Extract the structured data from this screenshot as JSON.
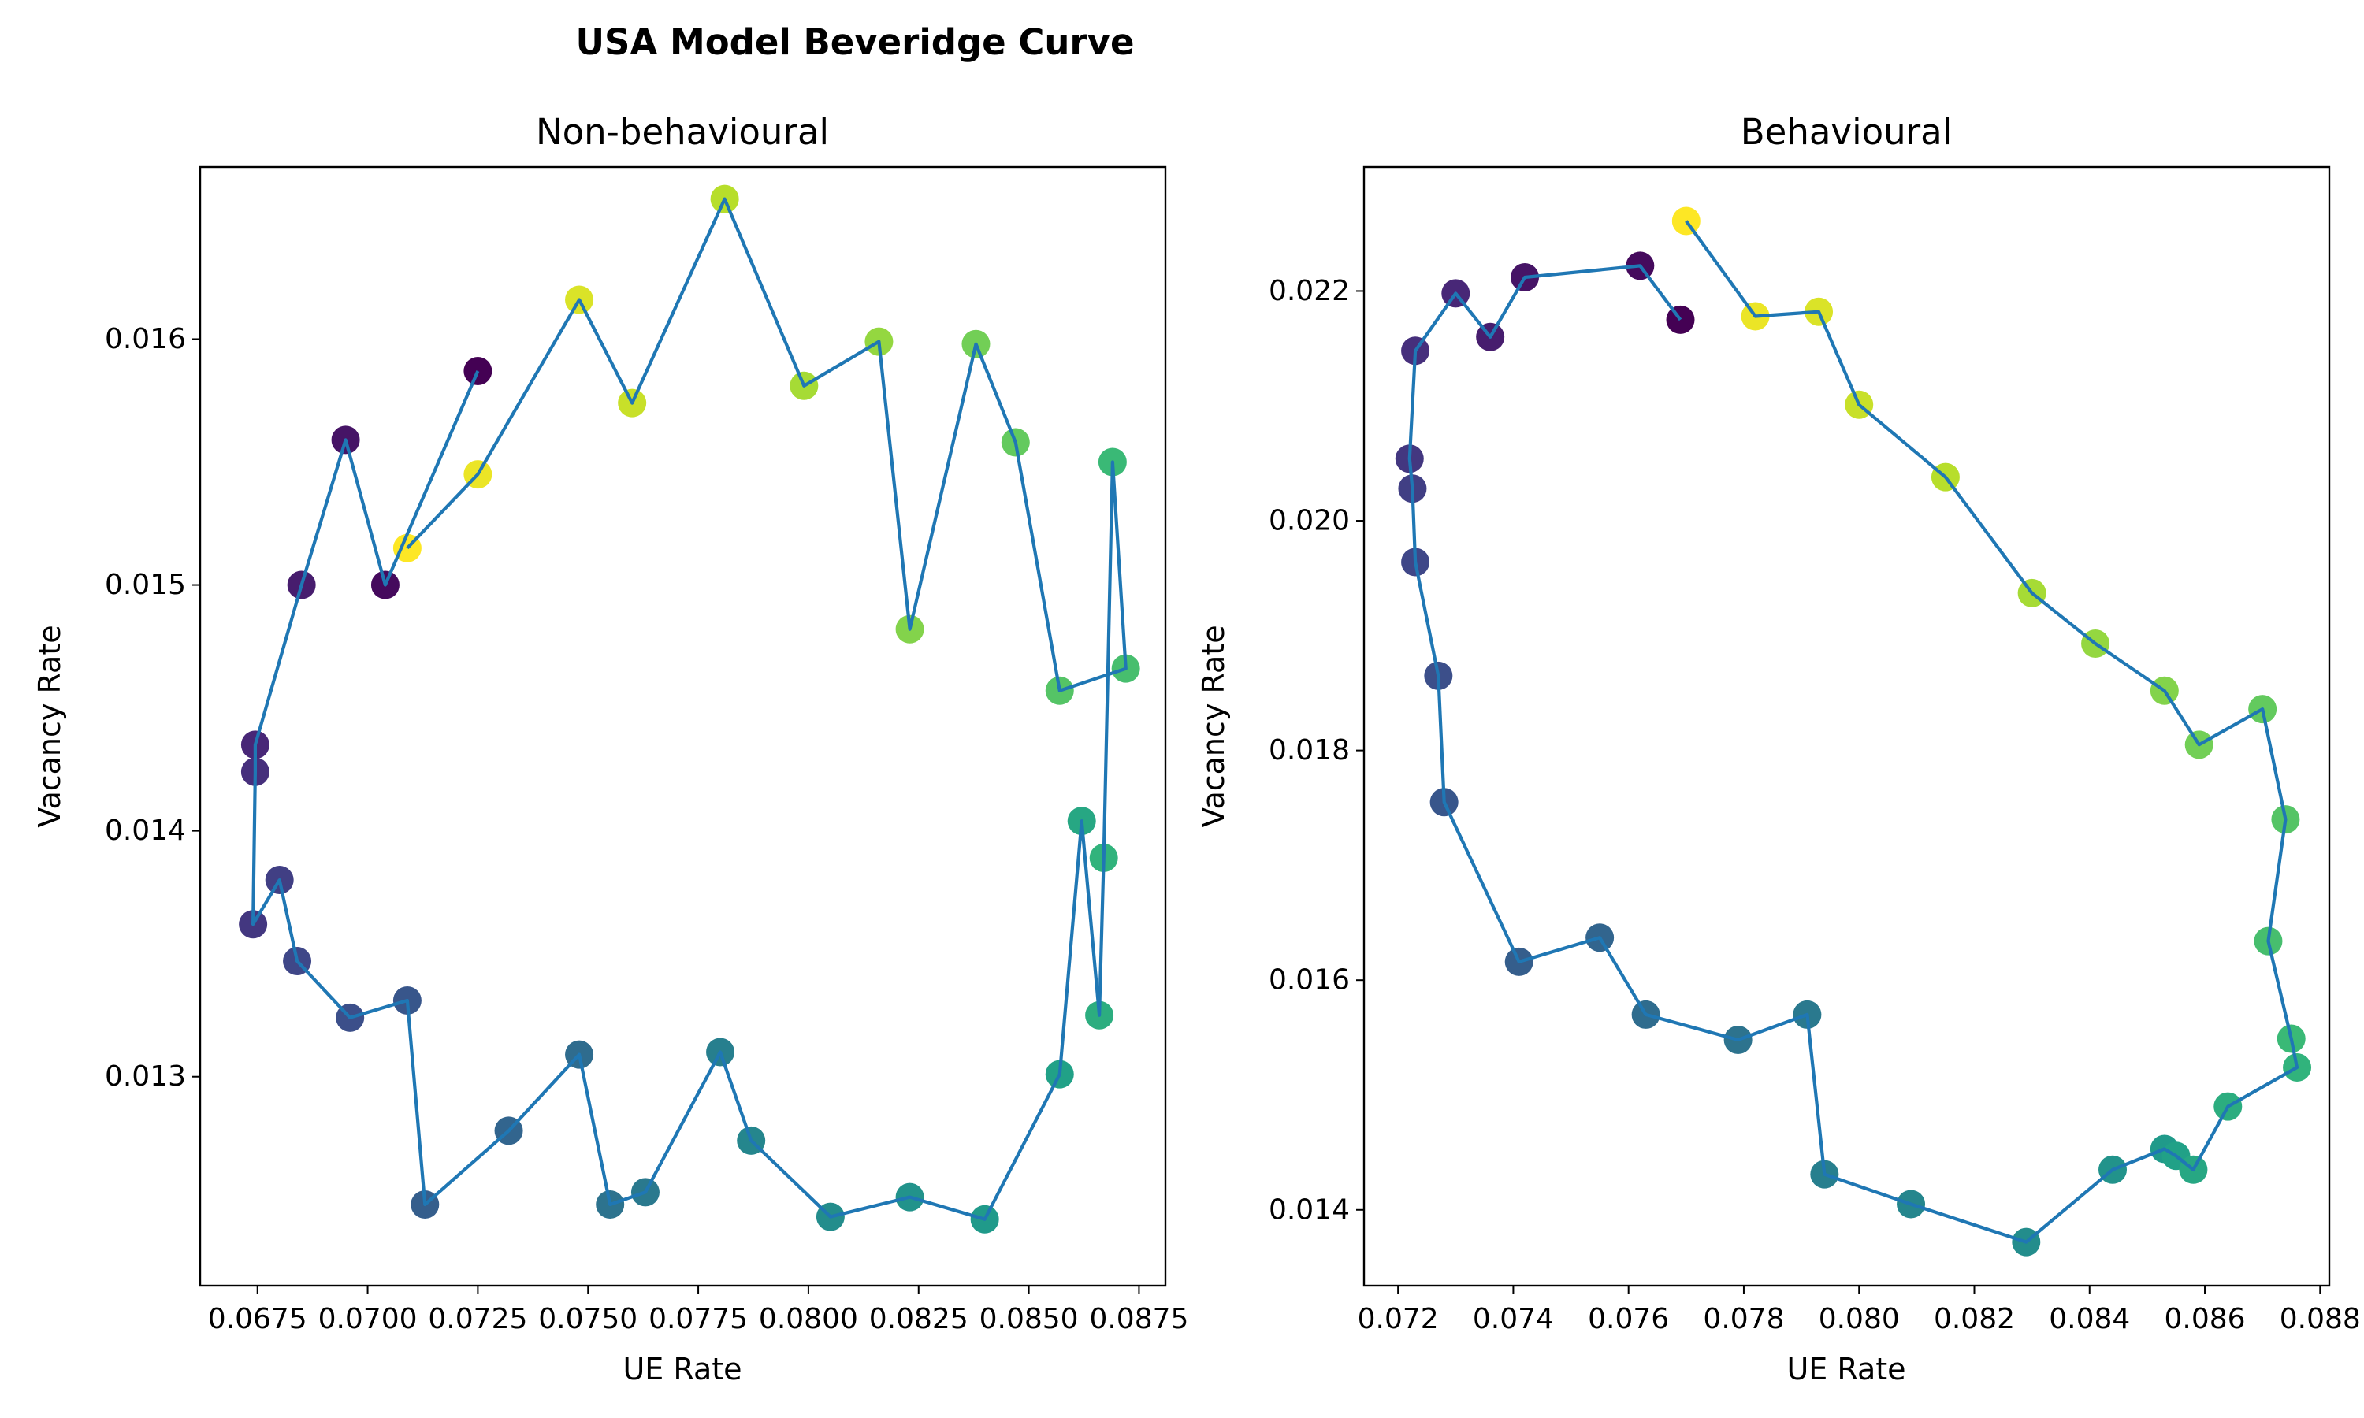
{
  "figure": {
    "suptitle": "USA Model Beveridge Curve"
  },
  "chart_data": [
    {
      "type": "scatter",
      "title": "Non-behavioural",
      "xlabel": "UE Rate",
      "ylabel": "Vacancy Rate",
      "xlim": [
        0.0662,
        0.0881
      ],
      "ylim": [
        0.01215,
        0.0167
      ],
      "xticks": [
        0.0675,
        0.07,
        0.0725,
        0.075,
        0.0775,
        0.08,
        0.0825,
        0.085,
        0.0875
      ],
      "xtick_labels": [
        "0.0675",
        "0.0700",
        "0.0725",
        "0.0750",
        "0.0775",
        "0.0800",
        "0.0825",
        "0.0850",
        "0.0875"
      ],
      "yticks": [
        0.013,
        0.014,
        0.015,
        0.016
      ],
      "ytick_labels": [
        "0.013",
        "0.014",
        "0.015",
        "0.016"
      ],
      "grid": false,
      "line_color": "#1f77b4",
      "colormap": "viridis",
      "color_order": "point index (first = dark purple, last = yellow)",
      "series": [
        {
          "x": [
            0.0725,
            0.0704,
            0.0695,
            0.0685,
            0.06745,
            0.06745,
            0.0674,
            0.068,
            0.0684,
            0.0696,
            0.0709,
            0.0713,
            0.0732,
            0.0748,
            0.0755,
            0.0763,
            0.078,
            0.0787,
            0.0805,
            0.0823,
            0.084,
            0.0857,
            0.0862,
            0.0866,
            0.0867,
            0.0869,
            0.0872,
            0.0857,
            0.0847,
            0.0838,
            0.0823,
            0.0816,
            0.0799,
            0.0781,
            0.076,
            0.0748,
            0.0725,
            0.0709
          ],
          "y": [
            0.01587,
            0.015,
            0.01559,
            0.015,
            0.01435,
            0.01424,
            0.01362,
            0.0138,
            0.01347,
            0.01324,
            0.01331,
            0.01248,
            0.01278,
            0.01309,
            0.01248,
            0.01253,
            0.0131,
            0.01274,
            0.01243,
            0.01251,
            0.01242,
            0.01301,
            0.01404,
            0.01325,
            0.01389,
            0.0155,
            0.01466,
            0.01457,
            0.01558,
            0.01598,
            0.01482,
            0.01599,
            0.01581,
            0.01657,
            0.01574,
            0.01616,
            0.01545,
            0.01515
          ]
        }
      ]
    },
    {
      "type": "scatter",
      "title": "Behavioural",
      "xlabel": "UE Rate",
      "ylabel": "Vacancy Rate",
      "xlim": [
        0.07141,
        0.08816
      ],
      "ylim": [
        0.01334,
        0.02308
      ],
      "xticks": [
        0.072,
        0.074,
        0.076,
        0.078,
        0.08,
        0.082,
        0.084,
        0.086,
        0.088
      ],
      "xtick_labels": [
        "0.072",
        "0.074",
        "0.076",
        "0.078",
        "0.080",
        "0.082",
        "0.084",
        "0.086",
        "0.088"
      ],
      "yticks": [
        0.014,
        0.016,
        0.018,
        0.02,
        0.022
      ],
      "ytick_labels": [
        "0.014",
        "0.016",
        "0.018",
        "0.020",
        "0.022"
      ],
      "grid": false,
      "line_color": "#1f77b4",
      "colormap": "viridis",
      "color_order": "point index (first = dark purple, last = yellow)",
      "series": [
        {
          "x": [
            0.0769,
            0.0762,
            0.0742,
            0.0736,
            0.073,
            0.0723,
            0.0722,
            0.07225,
            0.0723,
            0.0727,
            0.0728,
            0.0741,
            0.0755,
            0.0763,
            0.0779,
            0.0791,
            0.0794,
            0.0809,
            0.0829,
            0.0844,
            0.0853,
            0.0855,
            0.0858,
            0.0864,
            0.0876,
            0.0875,
            0.0871,
            0.0874,
            0.087,
            0.0859,
            0.0853,
            0.0841,
            0.083,
            0.0815,
            0.08,
            0.0793,
            0.0782,
            0.077
          ],
          "y": [
            0.02175,
            0.02222,
            0.02212,
            0.0216,
            0.02198,
            0.02148,
            0.02054,
            0.02028,
            0.01964,
            0.01865,
            0.01755,
            0.01616,
            0.01637,
            0.0157,
            0.01548,
            0.0157,
            0.01431,
            0.01405,
            0.01372,
            0.01435,
            0.01453,
            0.01447,
            0.01435,
            0.0149,
            0.01524,
            0.01549,
            0.01634,
            0.0174,
            0.01836,
            0.01805,
            0.01852,
            0.01893,
            0.01937,
            0.02038,
            0.02101,
            0.02182,
            0.02178,
            0.02261
          ]
        }
      ]
    }
  ]
}
